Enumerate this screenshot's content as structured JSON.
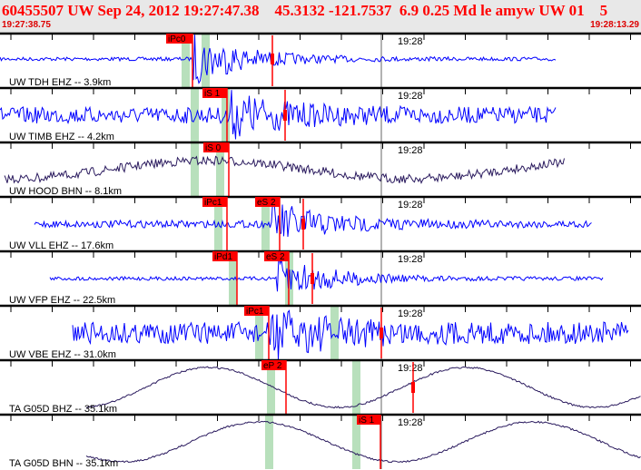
{
  "header": {
    "title": "60455507 UW Sep 24, 2012 19:27:47.38    45.3132 -121.7537  6.9 0.25 Md le amyw UW 01    5",
    "start_time": "19:27:38.75",
    "end_time": "19:28:13.29"
  },
  "minute_label": "19:28",
  "colors": {
    "header_text": "#ff0000",
    "pick": "#ff0000",
    "short_period": "#0000ff",
    "broadband": "#2a1a5e",
    "window": "#b8e0bc"
  },
  "traces": [
    {
      "label": "UW TDH EHZ -- 3.9km",
      "picks": [
        "iPc0"
      ]
    },
    {
      "label": "UW TIMB EHZ -- 4.2km",
      "picks": [
        "iS 1"
      ]
    },
    {
      "label": "UW HOOD BHN -- 8.1km",
      "picks": [
        "iS 0"
      ]
    },
    {
      "label": "UW VLL EHZ -- 17.6km",
      "picks": [
        "iPc1",
        "eS 2"
      ]
    },
    {
      "label": "UW VFP EHZ -- 22.5km",
      "picks": [
        "iPd1",
        "eS 2"
      ]
    },
    {
      "label": "UW VBE EHZ -- 31.0km",
      "picks": [
        "iPc1"
      ]
    },
    {
      "label": "TA G05D BHZ -- 35.1km",
      "picks": [
        "eP 2"
      ]
    },
    {
      "label": "TA G05D BHN -- 35.1km",
      "picks": [
        "iS 1"
      ]
    }
  ]
}
